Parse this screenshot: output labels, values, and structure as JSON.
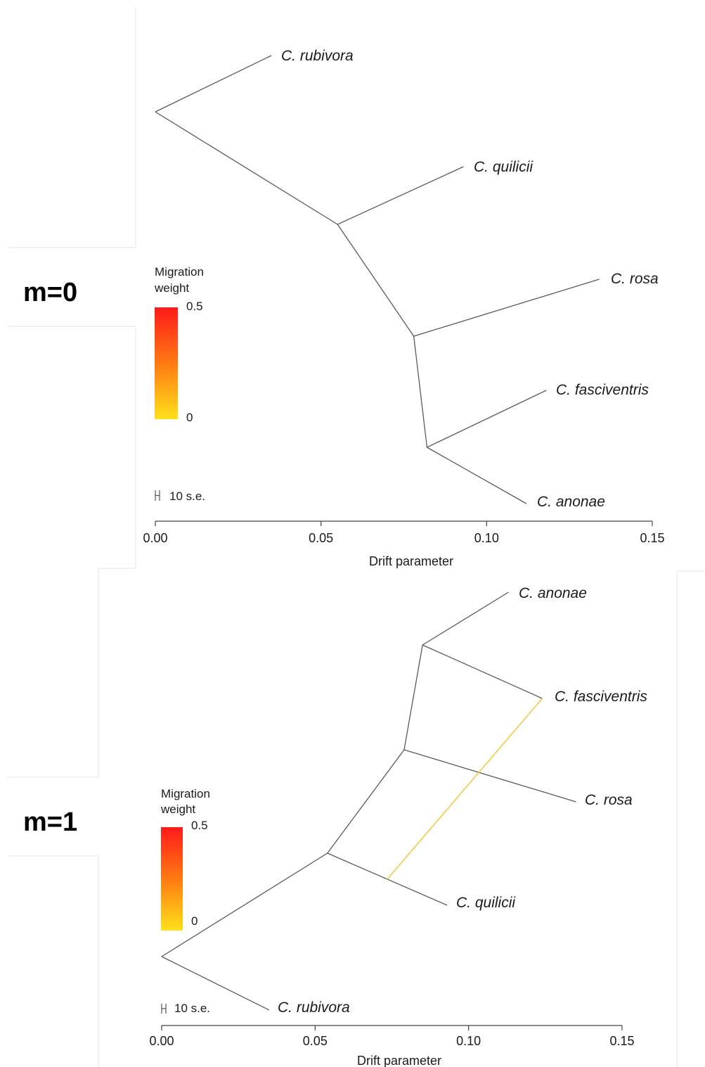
{
  "panels": [
    {
      "label": "m=0",
      "legend_title": [
        "Migration",
        "weight"
      ],
      "legend_max": "0.5",
      "legend_min": "0",
      "scale_label": "10 s.e."
    },
    {
      "label": "m=1",
      "legend_title": [
        "Migration",
        "weight"
      ],
      "legend_max": "0.5",
      "legend_min": "0",
      "scale_label": "10 s.e."
    }
  ],
  "colors": {
    "branch": "#5a5a5a",
    "migration": "#f5c84a",
    "legend_high": "#ff1a1a",
    "legend_low": "#ffe11a"
  },
  "chart_data": [
    {
      "type": "tree",
      "xlabel": "Drift parameter",
      "xlim": [
        0,
        0.15
      ],
      "xticks": [
        "0.00",
        "0.05",
        "0.10",
        "0.15"
      ],
      "tips": [
        {
          "name": "C. rubivora",
          "drift": 0.035
        },
        {
          "name": "C. quilicii",
          "drift": 0.093
        },
        {
          "name": "C. rosa",
          "drift": 0.134
        },
        {
          "name": "C. fasciventris",
          "drift": 0.118
        },
        {
          "name": "C. anonae",
          "drift": 0.112
        }
      ],
      "internal_nodes": [
        {
          "id": "root",
          "drift": 0.0
        },
        {
          "id": "n1",
          "drift": 0.055
        },
        {
          "id": "n2",
          "drift": 0.078
        },
        {
          "id": "n3",
          "drift": 0.082
        }
      ],
      "migration_edges": []
    },
    {
      "type": "tree",
      "xlabel": "Drift parameter",
      "xlim": [
        0,
        0.15
      ],
      "xticks": [
        "0.00",
        "0.05",
        "0.10",
        "0.15"
      ],
      "tips": [
        {
          "name": "C. anonae",
          "drift": 0.113
        },
        {
          "name": "C. fasciventris",
          "drift": 0.124
        },
        {
          "name": "C. rosa",
          "drift": 0.135
        },
        {
          "name": "C. quilicii",
          "drift": 0.093
        },
        {
          "name": "C. rubivora",
          "drift": 0.035
        }
      ],
      "internal_nodes": [
        {
          "id": "root",
          "drift": 0.0
        },
        {
          "id": "n1",
          "drift": 0.054
        },
        {
          "id": "n2",
          "drift": 0.079
        },
        {
          "id": "n3",
          "drift": 0.085
        }
      ],
      "migration_edges": [
        {
          "from": "C. quilicii branch",
          "to": "C. fasciventris",
          "weight": 0.05
        }
      ]
    }
  ]
}
